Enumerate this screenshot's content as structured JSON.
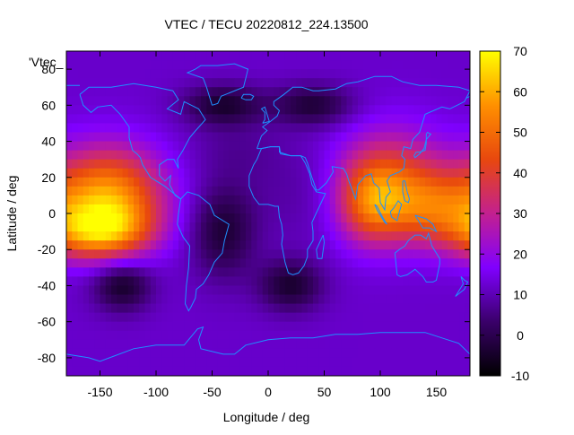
{
  "chart_data": {
    "type": "heatmap",
    "title": "VTEC / TECU 20220812_224.13500",
    "xlabel": "Longitude / deg",
    "ylabel": "Latitude / deg",
    "series_key": "'Vtec_",
    "xlim": [
      -180,
      180
    ],
    "ylim": [
      -90,
      90
    ],
    "x_ticks": [
      -150,
      -100,
      -50,
      0,
      50,
      100,
      150
    ],
    "y_ticks": [
      -80,
      -60,
      -40,
      -20,
      0,
      20,
      40,
      60,
      80
    ],
    "colorbar": {
      "range": [
        -10,
        70
      ],
      "ticks": [
        -10,
        0,
        10,
        20,
        30,
        40,
        50,
        60,
        70
      ],
      "palette": [
        "#000000",
        "#3a006a",
        "#8000ff",
        "#c3208f",
        "#e8480e",
        "#ff9000",
        "#ffff00"
      ]
    },
    "background_value": 12,
    "features": [
      {
        "lon": -142,
        "lat": 12,
        "value": 52,
        "sigma_lon": 34,
        "sigma_lat": 18
      },
      {
        "lon": -160,
        "lat": -12,
        "value": 38,
        "sigma_lon": 28,
        "sigma_lat": 10
      },
      {
        "lon": -130,
        "lat": -8,
        "value": 30,
        "sigma_lon": 26,
        "sigma_lat": 12
      },
      {
        "lon": 110,
        "lat": 18,
        "value": 40,
        "sigma_lon": 34,
        "sigma_lat": 20
      },
      {
        "lon": 150,
        "lat": 2,
        "value": 38,
        "sigma_lon": 36,
        "sigma_lat": 14
      },
      {
        "lon": 90,
        "lat": 5,
        "value": 34,
        "sigma_lon": 20,
        "sigma_lat": 16
      },
      {
        "lon": 35,
        "lat": 12,
        "value": 8,
        "sigma_lon": 40,
        "sigma_lat": 20
      },
      {
        "lon": -30,
        "lat": 35,
        "value": 8,
        "sigma_lon": 30,
        "sigma_lat": 12
      },
      {
        "lon": -40,
        "lat": -10,
        "value": -3,
        "sigma_lon": 20,
        "sigma_lat": 18
      },
      {
        "lon": -130,
        "lat": -40,
        "value": -5,
        "sigma_lon": 18,
        "sigma_lat": 10
      },
      {
        "lon": 20,
        "lat": -40,
        "value": -4,
        "sigma_lon": 20,
        "sigma_lat": 10
      },
      {
        "lon": -40,
        "lat": 60,
        "value": -4,
        "sigma_lon": 25,
        "sigma_lat": 8
      },
      {
        "lon": 40,
        "lat": 60,
        "value": -3,
        "sigma_lon": 25,
        "sigma_lat": 8
      }
    ],
    "coastline_color": "#1e90ff",
    "coastlines": [
      [
        [
          -168,
          66
        ],
        [
          -160,
          70
        ],
        [
          -140,
          70
        ],
        [
          -120,
          72
        ],
        [
          -100,
          70
        ],
        [
          -85,
          68
        ],
        [
          -80,
          63
        ],
        [
          -90,
          58
        ],
        [
          -78,
          55
        ],
        [
          -75,
          62
        ],
        [
          -62,
          58
        ],
        [
          -56,
          52
        ],
        [
          -66,
          45
        ],
        [
          -70,
          42
        ],
        [
          -76,
          35
        ],
        [
          -81,
          30
        ],
        [
          -80,
          25
        ],
        [
          -84,
          30
        ],
        [
          -90,
          30
        ],
        [
          -97,
          27
        ],
        [
          -97,
          21
        ],
        [
          -92,
          18
        ],
        [
          -87,
          21
        ],
        [
          -88,
          16
        ],
        [
          -83,
          10
        ],
        [
          -78,
          8
        ],
        [
          -80,
          9
        ],
        [
          -86,
          12
        ],
        [
          -92,
          15
        ],
        [
          -105,
          20
        ],
        [
          -112,
          27
        ],
        [
          -114,
          31
        ],
        [
          -117,
          33
        ],
        [
          -121,
          35
        ],
        [
          -124,
          42
        ],
        [
          -124,
          48
        ],
        [
          -132,
          55
        ],
        [
          -140,
          60
        ],
        [
          -152,
          59
        ],
        [
          -158,
          56
        ],
        [
          -165,
          60
        ],
        [
          -168,
          66
        ]
      ],
      [
        [
          -78,
          8
        ],
        [
          -72,
          12
        ],
        [
          -62,
          10
        ],
        [
          -52,
          5
        ],
        [
          -48,
          -1
        ],
        [
          -35,
          -6
        ],
        [
          -39,
          -15
        ],
        [
          -41,
          -22
        ],
        [
          -48,
          -27
        ],
        [
          -53,
          -34
        ],
        [
          -58,
          -39
        ],
        [
          -64,
          -42
        ],
        [
          -65,
          -47
        ],
        [
          -69,
          -52
        ],
        [
          -71,
          -54
        ],
        [
          -74,
          -50
        ],
        [
          -73,
          -40
        ],
        [
          -71,
          -30
        ],
        [
          -70,
          -18
        ],
        [
          -76,
          -13
        ],
        [
          -81,
          -6
        ],
        [
          -80,
          0
        ],
        [
          -78,
          8
        ]
      ],
      [
        [
          -10,
          36
        ],
        [
          -6,
          43
        ],
        [
          -1,
          46
        ],
        [
          -5,
          48
        ],
        [
          2,
          51
        ],
        [
          8,
          54
        ],
        [
          10,
          57
        ],
        [
          5,
          60
        ],
        [
          5,
          62
        ],
        [
          14,
          66
        ],
        [
          22,
          70
        ],
        [
          30,
          70
        ],
        [
          40,
          68
        ],
        [
          45,
          68
        ],
        [
          60,
          69
        ],
        [
          70,
          72
        ],
        [
          80,
          73
        ],
        [
          95,
          76
        ],
        [
          110,
          76
        ],
        [
          120,
          73
        ],
        [
          135,
          71
        ],
        [
          150,
          71
        ],
        [
          170,
          70
        ],
        [
          180,
          68
        ],
        [
          175,
          62
        ],
        [
          162,
          58
        ],
        [
          155,
          59
        ],
        [
          140,
          55
        ],
        [
          135,
          45
        ],
        [
          129,
          41
        ],
        [
          127,
          36
        ],
        [
          121,
          37
        ],
        [
          119,
          32
        ],
        [
          122,
          30
        ],
        [
          121,
          25
        ],
        [
          117,
          23
        ],
        [
          109,
          21
        ],
        [
          106,
          18
        ],
        [
          109,
          12
        ],
        [
          105,
          9
        ],
        [
          104,
          2
        ],
        [
          100,
          6
        ],
        [
          99,
          14
        ],
        [
          94,
          17
        ],
        [
          92,
          22
        ],
        [
          87,
          21
        ],
        [
          80,
          16
        ],
        [
          78,
          8
        ],
        [
          72,
          18
        ],
        [
          70,
          22
        ],
        [
          67,
          25
        ],
        [
          57,
          26
        ],
        [
          58,
          23
        ],
        [
          52,
          17
        ],
        [
          45,
          13
        ],
        [
          43,
          13
        ],
        [
          39,
          20
        ],
        [
          35,
          28
        ],
        [
          33,
          31
        ],
        [
          29,
          32
        ],
        [
          20,
          32
        ],
        [
          10,
          34
        ],
        [
          10,
          37
        ],
        [
          2,
          37
        ],
        [
          -6,
          36
        ],
        [
          -10,
          36
        ]
      ],
      [
        [
          -17,
          21
        ],
        [
          -17,
          15
        ],
        [
          -13,
          9
        ],
        [
          -8,
          5
        ],
        [
          0,
          5
        ],
        [
          6,
          4
        ],
        [
          9,
          4
        ],
        [
          10,
          -2
        ],
        [
          12,
          -6
        ],
        [
          13,
          -12
        ],
        [
          12,
          -17
        ],
        [
          15,
          -27
        ],
        [
          18,
          -33
        ],
        [
          22,
          -34
        ],
        [
          27,
          -33
        ],
        [
          32,
          -29
        ],
        [
          35,
          -24
        ],
        [
          35,
          -20
        ],
        [
          40,
          -15
        ],
        [
          40,
          -10
        ],
        [
          39,
          -5
        ],
        [
          42,
          -1
        ],
        [
          51,
          11
        ],
        [
          43,
          12
        ],
        [
          39,
          16
        ],
        [
          37,
          22
        ],
        [
          33,
          28
        ],
        [
          29,
          32
        ],
        [
          20,
          32
        ],
        [
          11,
          33
        ],
        [
          10,
          37
        ],
        [
          2,
          37
        ],
        [
          -6,
          36
        ],
        [
          -10,
          30
        ],
        [
          -13,
          27
        ],
        [
          -17,
          21
        ]
      ],
      [
        [
          113,
          -22
        ],
        [
          115,
          -34
        ],
        [
          118,
          -35
        ],
        [
          124,
          -34
        ],
        [
          131,
          -31
        ],
        [
          138,
          -35
        ],
        [
          141,
          -38
        ],
        [
          147,
          -38
        ],
        [
          150,
          -37
        ],
        [
          153,
          -28
        ],
        [
          153,
          -25
        ],
        [
          146,
          -18
        ],
        [
          143,
          -11
        ],
        [
          141,
          -14
        ],
        [
          136,
          -12
        ],
        [
          131,
          -12
        ],
        [
          125,
          -15
        ],
        [
          122,
          -18
        ],
        [
          117,
          -20
        ],
        [
          113,
          -22
        ]
      ],
      [
        [
          -50,
          60
        ],
        [
          -45,
          61
        ],
        [
          -42,
          65
        ],
        [
          -38,
          66
        ],
        [
          -22,
          70
        ],
        [
          -20,
          75
        ],
        [
          -18,
          80
        ],
        [
          -30,
          83
        ],
        [
          -45,
          82
        ],
        [
          -60,
          82
        ],
        [
          -65,
          80
        ],
        [
          -72,
          78
        ],
        [
          -58,
          75
        ],
        [
          -55,
          70
        ],
        [
          -53,
          66
        ],
        [
          -50,
          60
        ]
      ],
      [
        [
          -180,
          -78
        ],
        [
          -160,
          -80
        ],
        [
          -150,
          -82
        ],
        [
          -120,
          -75
        ],
        [
          -100,
          -73
        ],
        [
          -75,
          -73
        ],
        [
          -63,
          -64
        ],
        [
          -58,
          -63
        ],
        [
          -62,
          -70
        ],
        [
          -60,
          -75
        ],
        [
          -40,
          -78
        ],
        [
          -30,
          -78
        ],
        [
          -20,
          -73
        ],
        [
          0,
          -70
        ],
        [
          20,
          -69
        ],
        [
          40,
          -69
        ],
        [
          60,
          -67
        ],
        [
          80,
          -67
        ],
        [
          100,
          -66
        ],
        [
          120,
          -66
        ],
        [
          140,
          -66
        ],
        [
          160,
          -70
        ],
        [
          170,
          -72
        ],
        [
          180,
          -78
        ]
      ],
      [
        [
          -24,
          64
        ],
        [
          -22,
          66
        ],
        [
          -16,
          66
        ],
        [
          -13,
          65
        ],
        [
          -15,
          63
        ],
        [
          -20,
          63
        ],
        [
          -24,
          64
        ]
      ],
      [
        [
          -5,
          50
        ],
        [
          -3,
          52
        ],
        [
          -3,
          56
        ],
        [
          -6,
          58
        ],
        [
          -3,
          59
        ],
        [
          0,
          53
        ],
        [
          1,
          51
        ],
        [
          -5,
          50
        ]
      ],
      [
        [
          49,
          -12
        ],
        [
          50,
          -16
        ],
        [
          48,
          -25
        ],
        [
          44,
          -25
        ],
        [
          43,
          -20
        ],
        [
          46,
          -16
        ],
        [
          49,
          -12
        ]
      ],
      [
        [
          130,
          32
        ],
        [
          132,
          34
        ],
        [
          135,
          34
        ],
        [
          140,
          35
        ],
        [
          141,
          39
        ],
        [
          141,
          44
        ],
        [
          142,
          45
        ],
        [
          145,
          44
        ],
        [
          141,
          41
        ],
        [
          139,
          36
        ],
        [
          135,
          33
        ],
        [
          131,
          31
        ],
        [
          130,
          32
        ]
      ],
      [
        [
          95,
          5
        ],
        [
          97,
          4
        ],
        [
          102,
          -2
        ],
        [
          106,
          -6
        ],
        [
          104,
          -5
        ],
        [
          100,
          -1
        ],
        [
          97,
          2
        ],
        [
          95,
          5
        ]
      ],
      [
        [
          109,
          1
        ],
        [
          110,
          -2
        ],
        [
          115,
          -4
        ],
        [
          117,
          1
        ],
        [
          119,
          5
        ],
        [
          116,
          7
        ],
        [
          112,
          3
        ],
        [
          109,
          1
        ]
      ],
      [
        [
          131,
          -1
        ],
        [
          136,
          -2
        ],
        [
          141,
          -3
        ],
        [
          147,
          -6
        ],
        [
          150,
          -10
        ],
        [
          144,
          -8
        ],
        [
          138,
          -8
        ],
        [
          134,
          -4
        ],
        [
          131,
          -1
        ]
      ],
      [
        [
          120,
          18
        ],
        [
          122,
          18
        ],
        [
          124,
          12
        ],
        [
          126,
          8
        ],
        [
          125,
          6
        ],
        [
          122,
          7
        ],
        [
          120,
          12
        ],
        [
          120,
          18
        ]
      ],
      [
        [
          172,
          -35
        ],
        [
          175,
          -37
        ],
        [
          178,
          -38
        ],
        [
          175,
          -42
        ],
        [
          171,
          -44
        ],
        [
          167,
          -46
        ],
        [
          169,
          -44
        ],
        [
          172,
          -41
        ],
        [
          174,
          -39
        ],
        [
          172,
          -35
        ]
      ],
      [
        [
          -168,
          71
        ],
        [
          -180,
          71
        ],
        [
          -180,
          65
        ]
      ],
      [
        [
          180,
          65
        ],
        [
          177,
          64
        ]
      ]
    ]
  }
}
